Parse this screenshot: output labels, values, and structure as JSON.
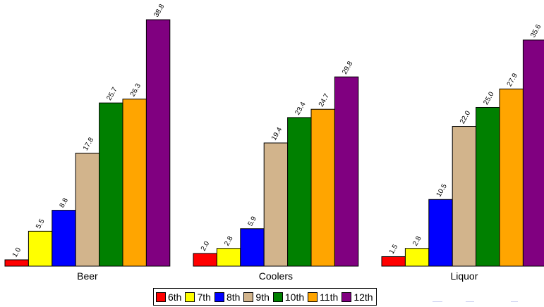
{
  "chart_data": {
    "type": "bar",
    "categories": [
      "Beer",
      "Coolers",
      "Liquor"
    ],
    "series": [
      {
        "name": "6th",
        "color": "#ff0000",
        "values": [
          1.0,
          2.0,
          1.5
        ]
      },
      {
        "name": "7th",
        "color": "#ffff00",
        "values": [
          5.5,
          2.8,
          2.8
        ]
      },
      {
        "name": "8th",
        "color": "#0000ff",
        "values": [
          8.8,
          5.9,
          10.5
        ]
      },
      {
        "name": "9th",
        "color": "#d2b48c",
        "values": [
          17.8,
          19.4,
          22.0
        ]
      },
      {
        "name": "10th",
        "color": "#008000",
        "values": [
          25.7,
          23.4,
          25.0
        ]
      },
      {
        "name": "11th",
        "color": "#ffa500",
        "values": [
          26.3,
          24.7,
          27.9
        ]
      },
      {
        "name": "12th",
        "color": "#800080",
        "values": [
          38.8,
          29.8,
          35.6
        ]
      }
    ],
    "value_labels": [
      [
        "1.0",
        "2.0",
        "1.5"
      ],
      [
        "5.5",
        "2.8",
        "2.8"
      ],
      [
        "8.8",
        "5.9",
        "10.5"
      ],
      [
        "17.8",
        "19.4",
        "22.0"
      ],
      [
        "25.7",
        "23.4",
        "25.0"
      ],
      [
        "26.3",
        "24.7",
        "27.9"
      ],
      [
        "38.8",
        "29.8",
        "35.6"
      ]
    ],
    "ylim": [
      0,
      38.8
    ],
    "grid": false,
    "legend_position": "bottom-center",
    "title": "",
    "xlabel": "",
    "ylabel": ""
  }
}
